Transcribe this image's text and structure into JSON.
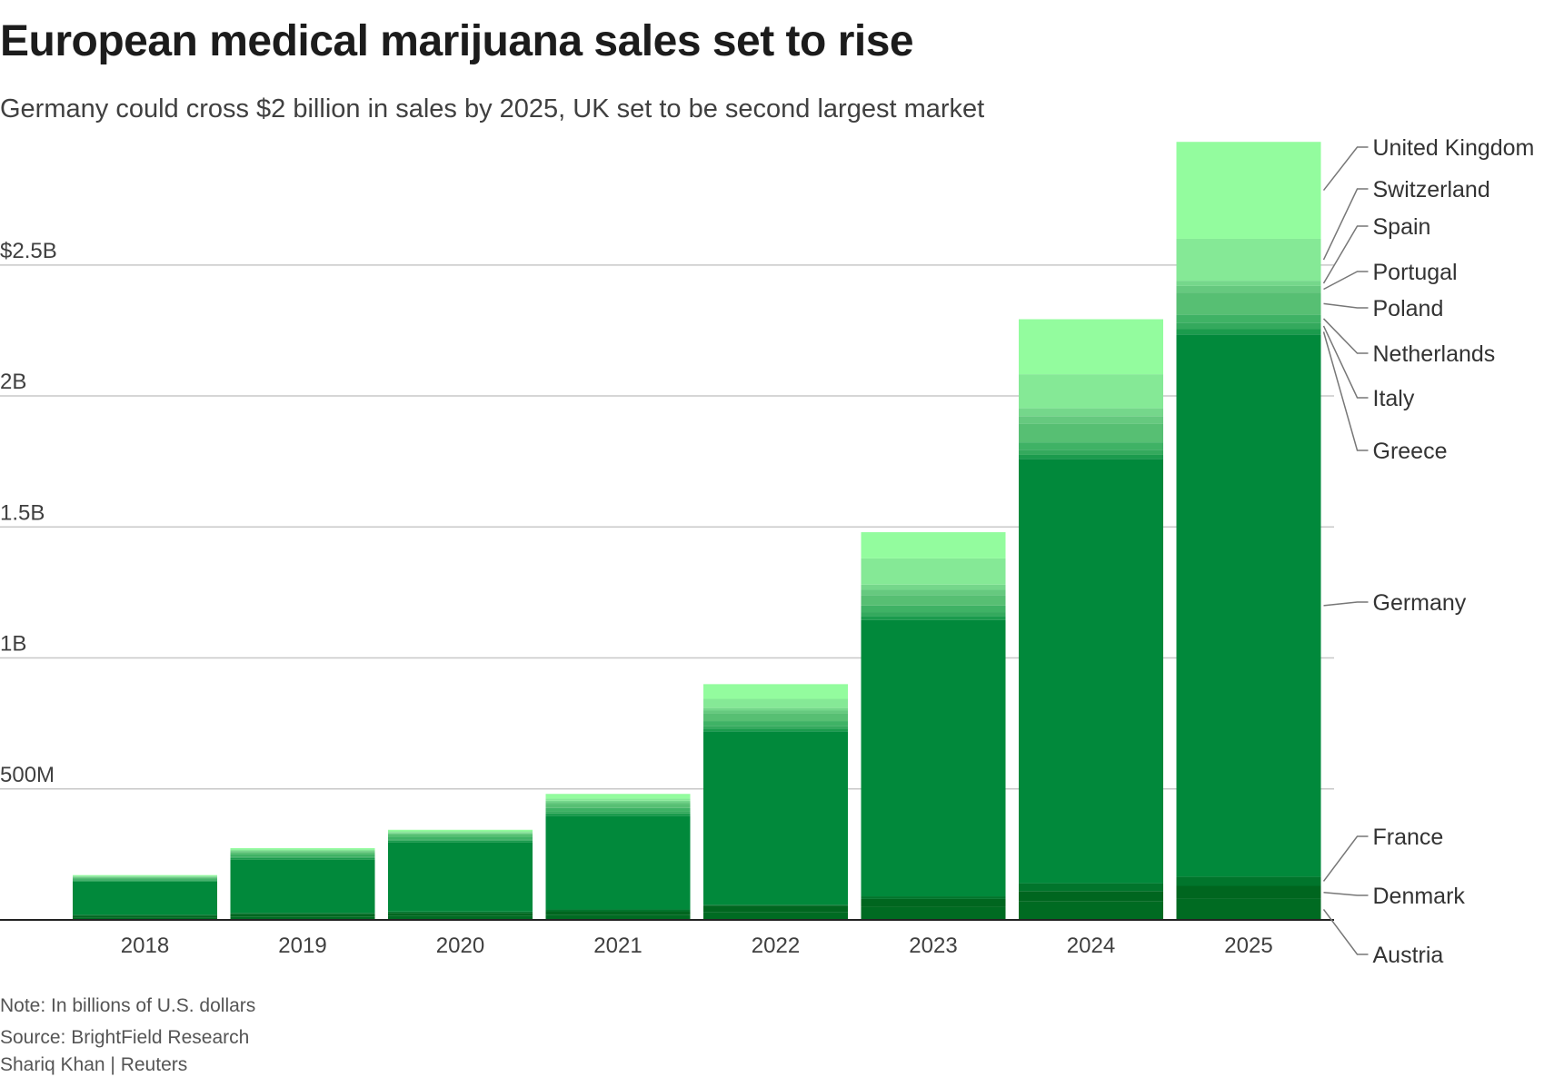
{
  "title": "European medical marijuana sales set to rise",
  "subtitle": "Germany could cross $2 billion in sales by 2025, UK set to be second largest market",
  "footer": {
    "note": "Note: In billions of U.S. dollars",
    "source": "Source: BrightField Research",
    "credit": "Shariq Khan | Reuters"
  },
  "chart_data": {
    "type": "bar",
    "stacked": true,
    "categories": [
      "2018",
      "2019",
      "2020",
      "2021",
      "2022",
      "2023",
      "2024",
      "2025"
    ],
    "ylim": [
      0,
      2.95
    ],
    "yticks": [
      0.5,
      1,
      1.5,
      2,
      2.5
    ],
    "ytick_labels": [
      "500M",
      "1B",
      "1.5B",
      "2B",
      "$2.5B"
    ],
    "grid": true,
    "legend": "direct labels right of last bar",
    "series": [
      {
        "name": "Austria",
        "color": "#006b22",
        "values": [
          0.01,
          0.013,
          0.015,
          0.018,
          0.03,
          0.05,
          0.07,
          0.08
        ]
      },
      {
        "name": "Denmark",
        "color": "#00661f",
        "values": [
          0.007,
          0.01,
          0.012,
          0.015,
          0.025,
          0.03,
          0.04,
          0.05
        ]
      },
      {
        "name": "France",
        "color": "#01752c",
        "values": [
          0.003,
          0.004,
          0.005,
          0.007,
          0.003,
          0.01,
          0.03,
          0.035
        ]
      },
      {
        "name": "Germany",
        "color": "#01893b",
        "values": [
          0.126,
          0.203,
          0.264,
          0.358,
          0.662,
          1.055,
          1.62,
          2.07
        ]
      },
      {
        "name": "Greece",
        "color": "#1b9b4d",
        "values": [
          0.004,
          0.006,
          0.006,
          0.008,
          0.01,
          0.015,
          0.015,
          0.02
        ]
      },
      {
        "name": "Italy",
        "color": "#34a95d",
        "values": [
          0.004,
          0.006,
          0.006,
          0.008,
          0.011,
          0.015,
          0.02,
          0.025
        ]
      },
      {
        "name": "Netherlands",
        "color": "#3fb265",
        "values": [
          0.004,
          0.009,
          0.009,
          0.013,
          0.018,
          0.025,
          0.028,
          0.03
        ]
      },
      {
        "name": "Poland",
        "color": "#57bf73",
        "values": [
          0.004,
          0.008,
          0.009,
          0.015,
          0.028,
          0.04,
          0.07,
          0.085
        ]
      },
      {
        "name": "Portugal",
        "color": "#66c97f",
        "values": [
          0.002,
          0.003,
          0.004,
          0.007,
          0.012,
          0.02,
          0.03,
          0.025
        ]
      },
      {
        "name": "Spain",
        "color": "#75d78b",
        "values": [
          0.002,
          0.003,
          0.004,
          0.006,
          0.01,
          0.02,
          0.03,
          0.02
        ]
      },
      {
        "name": "Switzerland",
        "color": "#85e996",
        "values": [
          0.002,
          0.004,
          0.004,
          0.008,
          0.035,
          0.1,
          0.13,
          0.16
        ]
      },
      {
        "name": "United Kingdom",
        "color": "#93fc9e",
        "values": [
          0.003,
          0.005,
          0.006,
          0.018,
          0.056,
          0.1,
          0.21,
          0.37
        ]
      }
    ]
  }
}
